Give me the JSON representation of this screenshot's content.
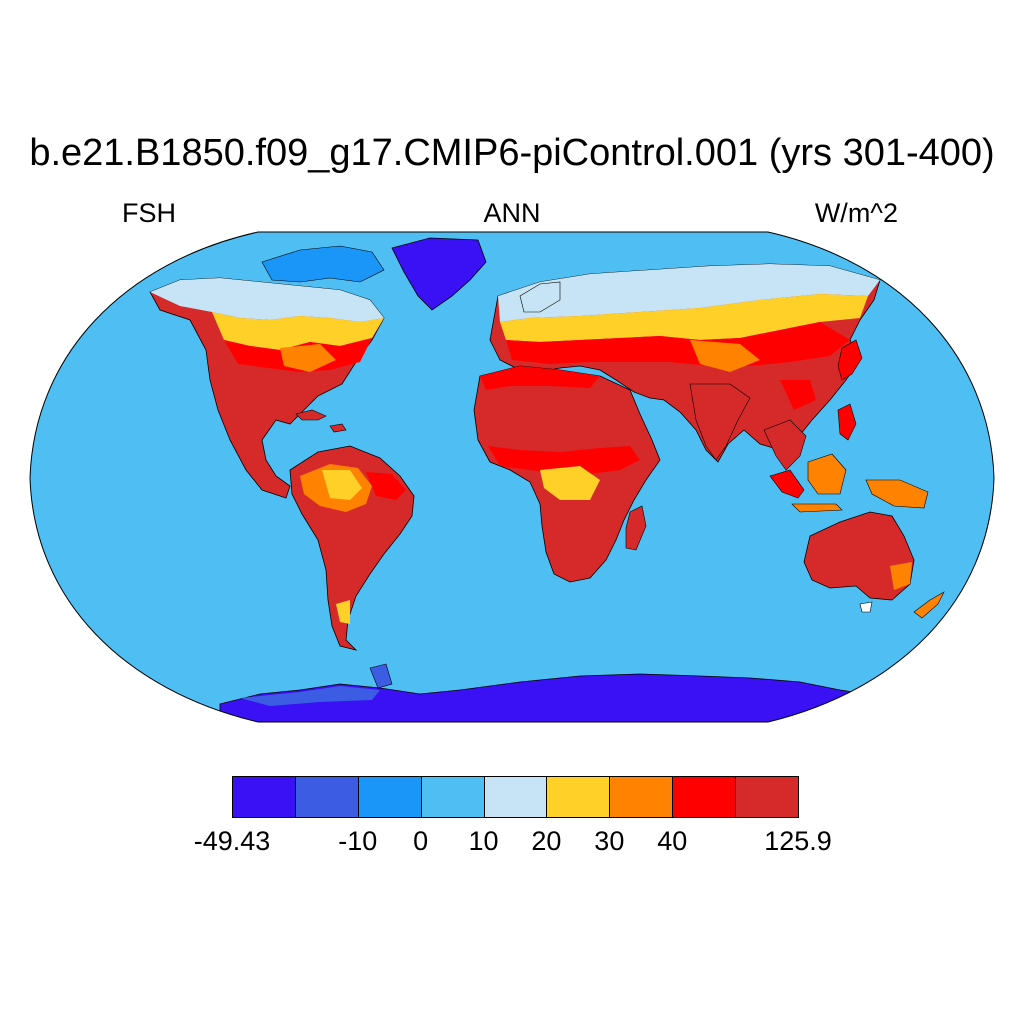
{
  "title": "b.e21.B1850.f09_g17.CMIP6-piControl.001 (yrs 301-400)",
  "left_label": "FSH",
  "center_label": "ANN",
  "right_label": "W/m^2",
  "colorbar": {
    "colors": [
      "#3a10f5",
      "#3b5ce3",
      "#1a96f8",
      "#4fbef2",
      "#c6e4f5",
      "#ffd028",
      "#ff8200",
      "#ff0000",
      "#d62a2a"
    ],
    "labels": [
      "-49.43",
      "-10",
      "0",
      "10",
      "20",
      "30",
      "40",
      "125.9"
    ]
  },
  "map": {
    "projection": "Robinson",
    "ocean_color": "#4fbef2",
    "land_outline_color": "#000000"
  }
}
